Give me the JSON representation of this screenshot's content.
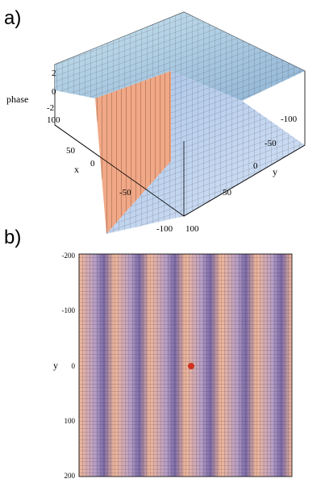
{
  "panels": [
    {
      "label": "a)",
      "axes": {
        "z": {
          "label": "phase",
          "ticks": [
            "2",
            "0",
            "-2"
          ]
        },
        "x": {
          "label": "x",
          "ticks": [
            "100",
            "50",
            "0",
            "-50",
            "-100"
          ]
        },
        "y": {
          "label": "y",
          "ticks": [
            "-100",
            "-50",
            "0",
            "50",
            "100"
          ]
        }
      }
    },
    {
      "label": "b)",
      "axes": {
        "y": {
          "label": "y",
          "ticks": [
            "-200",
            "-100",
            "0",
            "100",
            "200"
          ]
        }
      }
    }
  ]
}
